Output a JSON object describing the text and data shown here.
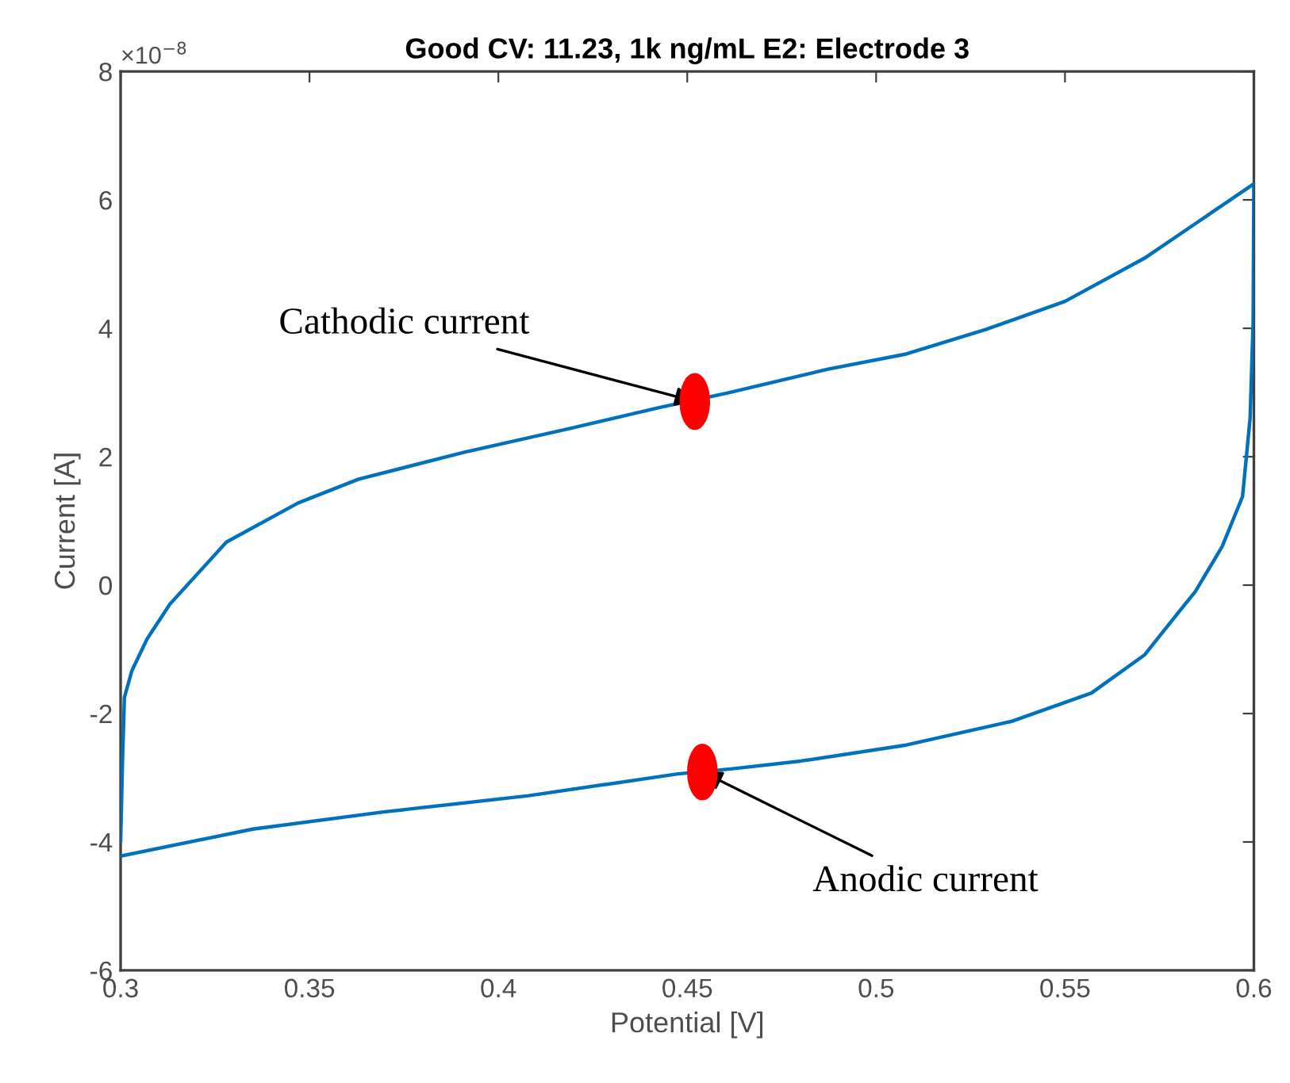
{
  "chart_data": {
    "type": "line",
    "title": "Good CV: 11.23, 1k ng/mL E2: Electrode 3",
    "xlabel": "Potential [V]",
    "ylabel": "Current [A]",
    "annotations": [
      "×10$^{−8}$",
      {
        "text": "Cathodic current",
        "x": 0.452,
        "y": 2.86
      },
      {
        "text": "Anodic current",
        "x": 0.454,
        "y": -2.91
      }
    ],
    "series": [
      {
        "color": "#0072bd",
        "x": [
          0.3,
          0.3005,
          0.301,
          0.303,
          0.307,
          0.313,
          0.328,
          0.347,
          0.363,
          0.391,
          0.419,
          0.443,
          0.4605,
          0.487,
          0.508,
          0.529,
          0.55,
          0.571,
          0.585,
          0.6
        ],
        "values": [
          -4.0,
          -2.74,
          -1.75,
          -1.33,
          -0.84,
          -0.3,
          0.67,
          1.28,
          1.65,
          2.07,
          2.44,
          2.77,
          2.99,
          3.36,
          3.6,
          3.98,
          4.42,
          5.09,
          5.65,
          6.25
        ]
      },
      {
        "color": "#0072bd",
        "x": [
          0.3,
          0.335,
          0.37,
          0.408,
          0.4475,
          0.462,
          0.48,
          0.508,
          0.536,
          0.557,
          0.571,
          0.579,
          0.5845,
          0.5916,
          0.597,
          0.599,
          0.5998,
          0.6
        ],
        "values": [
          -4.22,
          -3.8,
          -3.53,
          -3.28,
          -2.94,
          -2.86,
          -2.74,
          -2.49,
          -2.12,
          -1.68,
          -1.09,
          -0.5,
          -0.1,
          0.6,
          1.38,
          2.6,
          4.1,
          6.25
        ]
      },
      {
        "type": "scatter",
        "color": "#ff0000",
        "marker": "circle",
        "x": [
          0.452,
          0.454
        ],
        "values": [
          2.86,
          -2.91
        ]
      }
    ],
    "xlim": [
      0.3,
      0.6
    ],
    "xticks": [
      0.3,
      0.35,
      0.4,
      0.45,
      0.5,
      0.55,
      0.6
    ],
    "ylim": [
      -6,
      8
    ],
    "yticks": [
      -6,
      -4,
      -2,
      0,
      2,
      4,
      6,
      8
    ],
    "grid": false,
    "legend": false
  }
}
